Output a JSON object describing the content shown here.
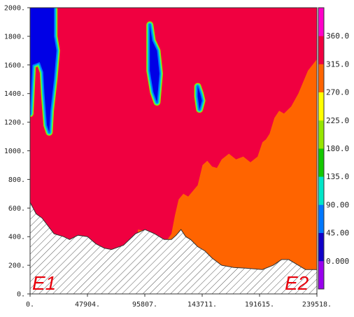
{
  "chart_data": {
    "type": "heatmap",
    "title": "",
    "xlabel": "",
    "ylabel": "",
    "xlim": [
      0,
      239518
    ],
    "ylim": [
      0,
      2000
    ],
    "x_ticks": [
      "0.",
      "47904.",
      "95807.",
      "143711.",
      "191615.",
      "239518."
    ],
    "y_ticks": [
      "0.",
      "200.",
      "400.",
      "600.",
      "800.",
      "1000.",
      "1200.",
      "1400.",
      "1600.",
      "1800.",
      "2000."
    ],
    "colorbar": {
      "labels": [
        "0.000",
        "45.00",
        "90.00",
        "135.0",
        "180.0",
        "225.0",
        "270.0",
        "315.0",
        "360.0"
      ],
      "bands": [
        "#9900ee",
        "#1000c8",
        "#0078ff",
        "#00e6c8",
        "#14c800",
        "#96e600",
        "#ffff00",
        "#ff6400",
        "#f00040",
        "#ff00c8"
      ]
    },
    "fill_colors": {
      "low": "#ff6400",
      "high": "#f00040",
      "core": "#0000e6",
      "hatch": "#555555"
    },
    "markers": {
      "left": "E1",
      "right": "E2"
    },
    "terrain_profile": [
      [
        0,
        640
      ],
      [
        5000,
        560
      ],
      [
        10000,
        530
      ],
      [
        20000,
        420
      ],
      [
        28000,
        400
      ],
      [
        33000,
        380
      ],
      [
        40000,
        410
      ],
      [
        48000,
        400
      ],
      [
        55000,
        350
      ],
      [
        62000,
        320
      ],
      [
        68000,
        310
      ],
      [
        78000,
        340
      ],
      [
        88000,
        420
      ],
      [
        96000,
        450
      ],
      [
        104000,
        420
      ],
      [
        112000,
        380
      ],
      [
        118000,
        380
      ],
      [
        122000,
        410
      ],
      [
        126000,
        450
      ],
      [
        130000,
        400
      ],
      [
        134000,
        380
      ],
      [
        140000,
        330
      ],
      [
        146000,
        300
      ],
      [
        152000,
        250
      ],
      [
        160000,
        200
      ],
      [
        170000,
        185
      ],
      [
        180000,
        180
      ],
      [
        194000,
        170
      ],
      [
        203000,
        200
      ],
      [
        210000,
        240
      ],
      [
        216000,
        240
      ],
      [
        224000,
        200
      ],
      [
        230000,
        170
      ],
      [
        239518,
        170
      ]
    ],
    "regime_boundary": [
      [
        90000,
        450
      ],
      [
        96000,
        440
      ],
      [
        100000,
        400
      ],
      [
        104000,
        360
      ],
      [
        108000,
        340
      ],
      [
        114000,
        370
      ],
      [
        118000,
        420
      ],
      [
        121000,
        550
      ],
      [
        124000,
        660
      ],
      [
        128000,
        700
      ],
      [
        132000,
        680
      ],
      [
        136000,
        720
      ],
      [
        140000,
        760
      ],
      [
        144000,
        900
      ],
      [
        148000,
        930
      ],
      [
        152000,
        890
      ],
      [
        156000,
        880
      ],
      [
        160000,
        940
      ],
      [
        166000,
        980
      ],
      [
        172000,
        940
      ],
      [
        178000,
        960
      ],
      [
        184000,
        920
      ],
      [
        190000,
        960
      ],
      [
        194000,
        1060
      ],
      [
        197000,
        1080
      ],
      [
        200000,
        1120
      ],
      [
        204000,
        1230
      ],
      [
        208000,
        1280
      ],
      [
        212000,
        1260
      ],
      [
        218000,
        1310
      ],
      [
        224000,
        1400
      ],
      [
        232000,
        1560
      ],
      [
        239518,
        1640
      ]
    ],
    "cores": [
      {
        "points": [
          [
            0,
            2000
          ],
          [
            20000,
            2000
          ],
          [
            20000,
            1800
          ],
          [
            22000,
            1700
          ],
          [
            20000,
            1500
          ],
          [
            17000,
            1280
          ],
          [
            16000,
            1130
          ],
          [
            14000,
            1180
          ],
          [
            12000,
            1400
          ],
          [
            11000,
            1550
          ],
          [
            8000,
            1620
          ],
          [
            2000,
            1600
          ],
          [
            0,
            1260
          ]
        ]
      },
      {
        "points": [
          [
            100000,
            1880
          ],
          [
            102000,
            1770
          ],
          [
            106000,
            1700
          ],
          [
            108000,
            1540
          ],
          [
            106000,
            1340
          ],
          [
            103000,
            1410
          ],
          [
            100000,
            1560
          ]
        ]
      },
      {
        "points": [
          [
            140000,
            1450
          ],
          [
            142000,
            1400
          ],
          [
            143500,
            1350
          ],
          [
            141500,
            1290
          ],
          [
            140000,
            1380
          ]
        ]
      }
    ]
  }
}
